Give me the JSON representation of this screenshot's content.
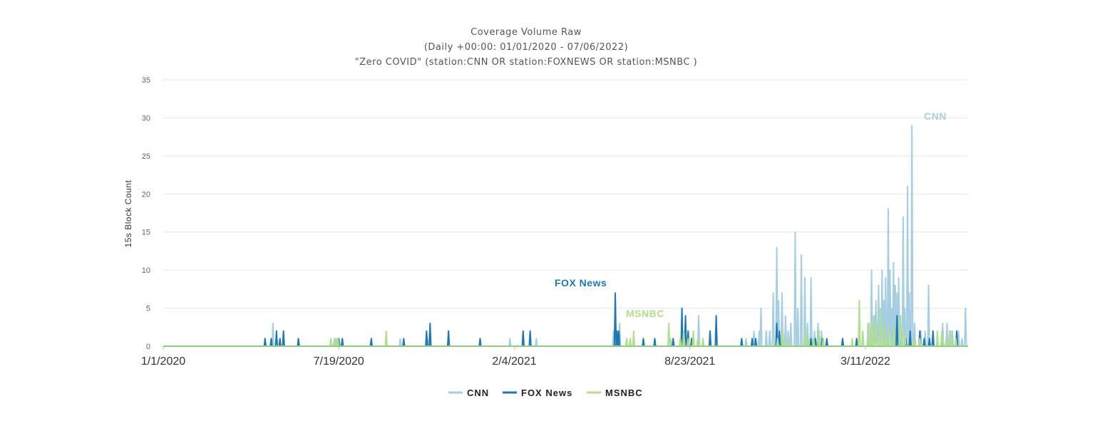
{
  "chart_data": {
    "type": "line",
    "title": [
      "Coverage Volume Raw",
      "(Daily +00:00: 01/01/2020 - 07/06/2022)",
      "\"Zero COVID\" (station:CNN OR station:FOXNEWS OR station:MSNBC )"
    ],
    "xlabel": "",
    "ylabel": "15s Block Count",
    "ylim": [
      0,
      35
    ],
    "yticks": [
      0,
      5,
      10,
      15,
      20,
      25,
      30,
      35
    ],
    "x_start": "2020-01-01",
    "x_end": "2022-07-06",
    "xticks": [
      {
        "date": "2020-01-01",
        "label": "1/1/2020"
      },
      {
        "date": "2020-07-19",
        "label": "7/19/2020"
      },
      {
        "date": "2021-02-04",
        "label": "2/4/2021"
      },
      {
        "date": "2021-08-23",
        "label": "8/23/2021"
      },
      {
        "date": "2022-03-11",
        "label": "3/11/2022"
      }
    ],
    "grid": true,
    "legend_position": "bottom",
    "series": [
      {
        "name": "CNN",
        "color": "#a6cee3",
        "points": [
          [
            "2020-05-05",
            3
          ],
          [
            "2020-07-15",
            1
          ],
          [
            "2020-07-17",
            1
          ],
          [
            "2020-09-27",
            1
          ],
          [
            "2020-10-28",
            1
          ],
          [
            "2021-01-30",
            1
          ],
          [
            "2021-03-01",
            1
          ],
          [
            "2021-05-28",
            2
          ],
          [
            "2021-06-04",
            3
          ],
          [
            "2021-08-01",
            1
          ],
          [
            "2021-09-02",
            4
          ],
          [
            "2021-10-26",
            1
          ],
          [
            "2021-11-04",
            2
          ],
          [
            "2021-11-10",
            2
          ],
          [
            "2021-11-12",
            5
          ],
          [
            "2021-11-18",
            2
          ],
          [
            "2021-11-22",
            2
          ],
          [
            "2021-11-26",
            7
          ],
          [
            "2021-11-30",
            13
          ],
          [
            "2021-12-02",
            6
          ],
          [
            "2021-12-06",
            7
          ],
          [
            "2021-12-10",
            4
          ],
          [
            "2021-12-13",
            2
          ],
          [
            "2021-12-16",
            3
          ],
          [
            "2021-12-21",
            15
          ],
          [
            "2021-12-24",
            5
          ],
          [
            "2021-12-28",
            12
          ],
          [
            "2022-01-01",
            9
          ],
          [
            "2022-01-04",
            3
          ],
          [
            "2022-01-08",
            9
          ],
          [
            "2022-01-12",
            2
          ],
          [
            "2022-01-16",
            3
          ],
          [
            "2022-01-20",
            2
          ],
          [
            "2022-03-14",
            3
          ],
          [
            "2022-03-18",
            10
          ],
          [
            "2022-03-21",
            4
          ],
          [
            "2022-03-23",
            6
          ],
          [
            "2022-03-26",
            8
          ],
          [
            "2022-03-28",
            4
          ],
          [
            "2022-03-30",
            10
          ],
          [
            "2022-04-01",
            6
          ],
          [
            "2022-04-03",
            9
          ],
          [
            "2022-04-06",
            18
          ],
          [
            "2022-04-08",
            10
          ],
          [
            "2022-04-10",
            5
          ],
          [
            "2022-04-12",
            11
          ],
          [
            "2022-04-14",
            8
          ],
          [
            "2022-04-16",
            7
          ],
          [
            "2022-04-18",
            9
          ],
          [
            "2022-04-20",
            4
          ],
          [
            "2022-04-23",
            17
          ],
          [
            "2022-04-25",
            5
          ],
          [
            "2022-04-28",
            21
          ],
          [
            "2022-04-30",
            7
          ],
          [
            "2022-05-03",
            29
          ],
          [
            "2022-05-06",
            3
          ],
          [
            "2022-05-13",
            2
          ],
          [
            "2022-05-18",
            2
          ],
          [
            "2022-05-22",
            8
          ],
          [
            "2022-06-01",
            1
          ],
          [
            "2022-06-07",
            3
          ],
          [
            "2022-06-12",
            3
          ],
          [
            "2022-06-15",
            2
          ],
          [
            "2022-06-18",
            2
          ],
          [
            "2022-06-22",
            1
          ],
          [
            "2022-06-25",
            2
          ],
          [
            "2022-06-29",
            1
          ],
          [
            "2022-07-03",
            5
          ]
        ]
      },
      {
        "name": "FOX News",
        "color": "#1f78b4",
        "points": [
          [
            "2020-04-26",
            1
          ],
          [
            "2020-05-03",
            1
          ],
          [
            "2020-05-09",
            2
          ],
          [
            "2020-05-13",
            1
          ],
          [
            "2020-05-17",
            2
          ],
          [
            "2020-06-03",
            1
          ],
          [
            "2020-07-19",
            1
          ],
          [
            "2020-07-23",
            1
          ],
          [
            "2020-08-25",
            1
          ],
          [
            "2020-10-01",
            1
          ],
          [
            "2020-10-27",
            2
          ],
          [
            "2020-10-31",
            3
          ],
          [
            "2020-11-21",
            2
          ],
          [
            "2020-12-27",
            1
          ],
          [
            "2021-02-14",
            2
          ],
          [
            "2021-02-22",
            2
          ],
          [
            "2021-05-30",
            7
          ],
          [
            "2021-06-01",
            2
          ],
          [
            "2021-06-03",
            2
          ],
          [
            "2021-07-01",
            1
          ],
          [
            "2021-07-14",
            1
          ],
          [
            "2021-08-04",
            1
          ],
          [
            "2021-08-14",
            5
          ],
          [
            "2021-08-18",
            4
          ],
          [
            "2021-08-21",
            2
          ],
          [
            "2021-08-25",
            1
          ],
          [
            "2021-09-15",
            2
          ],
          [
            "2021-09-22",
            4
          ],
          [
            "2021-10-21",
            1
          ],
          [
            "2021-11-02",
            1
          ],
          [
            "2021-11-06",
            1
          ],
          [
            "2021-11-30",
            3
          ],
          [
            "2021-12-03",
            2
          ],
          [
            "2022-01-08",
            1
          ],
          [
            "2022-01-13",
            1
          ],
          [
            "2022-01-17",
            2
          ],
          [
            "2022-01-21",
            1
          ],
          [
            "2022-01-26",
            1
          ],
          [
            "2022-02-13",
            1
          ],
          [
            "2022-03-01",
            1
          ],
          [
            "2022-04-12",
            3
          ],
          [
            "2022-04-16",
            4
          ],
          [
            "2022-04-20",
            3
          ],
          [
            "2022-04-26",
            1
          ],
          [
            "2022-05-01",
            2
          ],
          [
            "2022-05-05",
            1
          ],
          [
            "2022-05-12",
            2
          ],
          [
            "2022-05-17",
            1
          ],
          [
            "2022-05-23",
            1
          ],
          [
            "2022-05-27",
            2
          ],
          [
            "2022-06-06",
            1
          ],
          [
            "2022-06-23",
            2
          ]
        ]
      },
      {
        "name": "MSNBC",
        "color": "#b2df8a",
        "points": [
          [
            "2020-07-10",
            1
          ],
          [
            "2020-07-14",
            1
          ],
          [
            "2020-07-18",
            1
          ],
          [
            "2020-09-11",
            2
          ],
          [
            "2021-06-12",
            1
          ],
          [
            "2021-06-16",
            1
          ],
          [
            "2021-06-20",
            2
          ],
          [
            "2021-07-30",
            3
          ],
          [
            "2021-08-12",
            1
          ],
          [
            "2021-08-16",
            2
          ],
          [
            "2021-08-21",
            1
          ],
          [
            "2021-08-27",
            2
          ],
          [
            "2021-09-01",
            1
          ],
          [
            "2021-09-07",
            1
          ],
          [
            "2021-12-01",
            1
          ],
          [
            "2021-12-07",
            2
          ],
          [
            "2021-12-13",
            1
          ],
          [
            "2022-01-01",
            2
          ],
          [
            "2022-01-05",
            1
          ],
          [
            "2022-01-11",
            1
          ],
          [
            "2022-01-17",
            2
          ],
          [
            "2022-01-22",
            1
          ],
          [
            "2022-02-24",
            1
          ],
          [
            "2022-03-04",
            6
          ],
          [
            "2022-03-08",
            2
          ],
          [
            "2022-03-15",
            3
          ],
          [
            "2022-03-19",
            4
          ],
          [
            "2022-03-23",
            3
          ],
          [
            "2022-03-28",
            5
          ],
          [
            "2022-04-02",
            3
          ],
          [
            "2022-04-06",
            2
          ],
          [
            "2022-04-12",
            3
          ],
          [
            "2022-04-20",
            4
          ],
          [
            "2022-04-25",
            2
          ],
          [
            "2022-05-05",
            1
          ],
          [
            "2022-05-12",
            1
          ],
          [
            "2022-06-01",
            2
          ],
          [
            "2022-06-06",
            2
          ],
          [
            "2022-06-11",
            1
          ],
          [
            "2022-06-16",
            2
          ],
          [
            "2022-06-22",
            1
          ]
        ]
      }
    ],
    "annotations": [
      {
        "text": "CNN",
        "series": "CNN"
      },
      {
        "text": "FOX News",
        "series": "FOX News"
      },
      {
        "text": "MSNBC",
        "series": "MSNBC"
      }
    ],
    "legend": [
      "CNN",
      "FOX News",
      "MSNBC"
    ]
  }
}
